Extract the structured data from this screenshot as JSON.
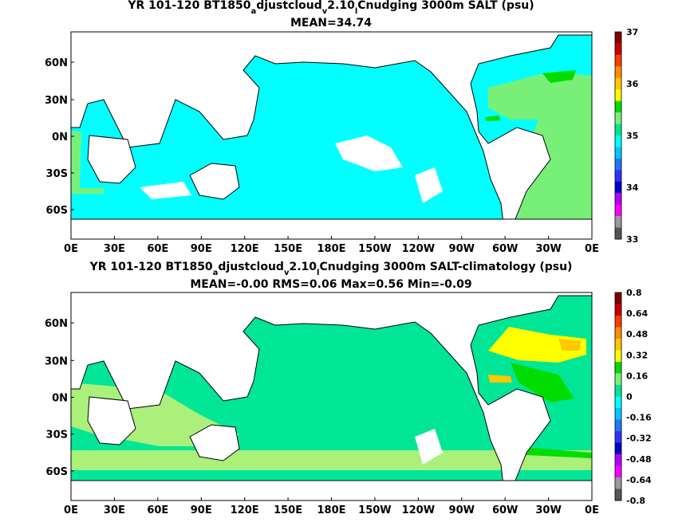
{
  "panels": [
    {
      "title_line1": {
        "prefix": "YR 101-120 BT1850",
        "sub1": "a",
        "mid": "djustcloud",
        "sub2": "v",
        "mid2": "2.10",
        "sub3": "l",
        "suffix": "Cnudging 3000m SALT (psu)"
      },
      "title_line2": "MEAN=34.74",
      "colorbar_ticks": [
        "37",
        "36",
        "35",
        "34",
        "33"
      ],
      "colorbar_colors": [
        "#800000",
        "#c80000",
        "#ff3c00",
        "#ff8c00",
        "#ffc800",
        "#ffff00",
        "#00dc00",
        "#78f078",
        "#00e696",
        "#00ffff",
        "#00c8ff",
        "#1e78ff",
        "#3232ff",
        "#0000c8",
        "#b400ff",
        "#ff00ff",
        "#999999",
        "#555555"
      ]
    },
    {
      "title_line1": {
        "prefix": "YR 101-120 BT1850",
        "sub1": "a",
        "mid": "djustcloud",
        "sub2": "v",
        "mid2": "2.10",
        "sub3": "l",
        "suffix": "Cnudging 3000m SALT-climatology (psu)"
      },
      "title_line2": "MEAN=-0.00   RMS=0.06   Max=0.56   Min=-0.09",
      "colorbar_ticks": [
        "0.8",
        "0.64",
        "0.48",
        "0.32",
        "0.16",
        "0",
        "-0.16",
        "-0.32",
        "-0.48",
        "-0.64",
        "-0.8"
      ],
      "colorbar_colors": [
        "#800000",
        "#c80000",
        "#ff3c00",
        "#ff8c00",
        "#ffc800",
        "#ffff00",
        "#00dc00",
        "#78f078",
        "#00e696",
        "#00ffff",
        "#00c8ff",
        "#1e78ff",
        "#3232ff",
        "#0000c8",
        "#b400ff",
        "#ff00ff",
        "#999999",
        "#555555"
      ]
    }
  ],
  "lat_labels": [
    "60N",
    "30N",
    "0N",
    "30S",
    "60S"
  ],
  "lon_labels": [
    "0E",
    "30E",
    "60E",
    "90E",
    "120E",
    "150E",
    "180E",
    "150W",
    "120W",
    "90W",
    "60W",
    "30W",
    "0E"
  ],
  "colors": {
    "upper_ocean": "#00ffff",
    "upper_atlantic": "#78f078",
    "lower_ocean": "#00e696",
    "lower_anomaly_light": "#aaf07a",
    "lower_anomaly_yellow": "#ffff00",
    "lower_anomaly_gold": "#ffc800",
    "land": "#ffffff"
  }
}
